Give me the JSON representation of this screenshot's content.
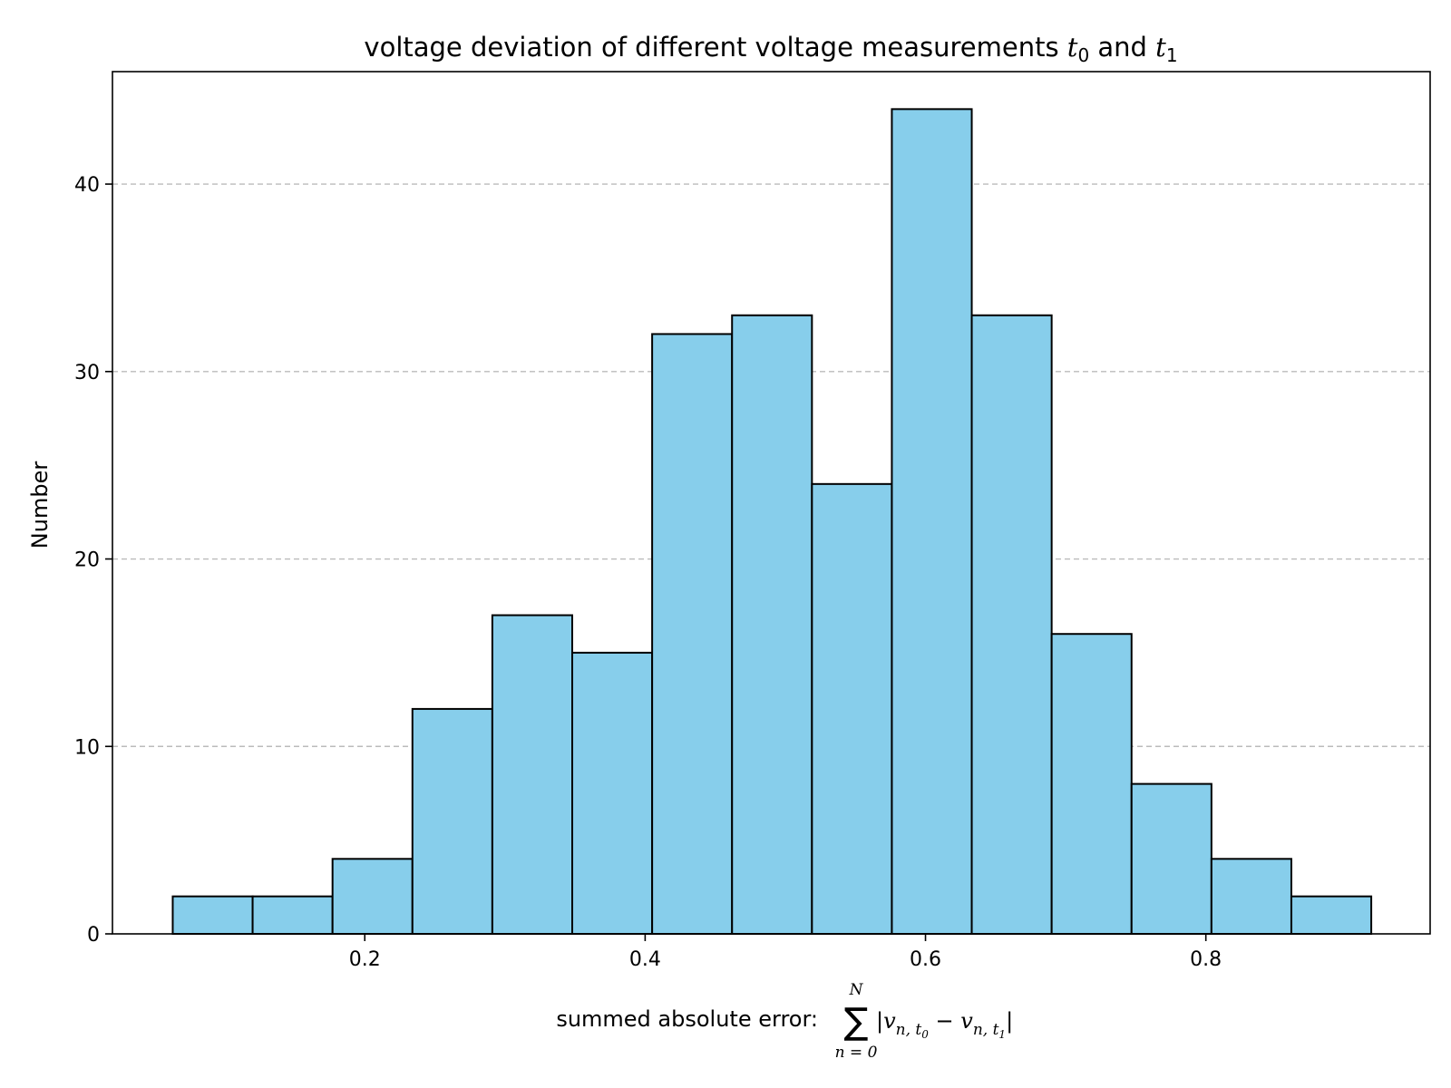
{
  "chart_data": {
    "type": "bar",
    "title": {
      "text": "voltage deviation of different voltage measurements ",
      "var0": "t",
      "sub0": "0",
      "conj": " and ",
      "var1": "t",
      "sub1": "1"
    },
    "xlabel": {
      "prefix": "summed absolute error:  ",
      "sum_symbol": "∑",
      "sum_upper": "N",
      "sum_lower": "n = 0",
      "abs_open": "|",
      "v0": "v",
      "sub0_main": "n, t",
      "sub0_sub": "0",
      "minus": " − ",
      "v1": "v",
      "sub1_main": "n, t",
      "sub1_sub": "1",
      "abs_close": "|"
    },
    "ylabel": "Number",
    "xlim": [
      0.02,
      0.96
    ],
    "ylim": [
      0,
      46
    ],
    "xticks": [
      0.2,
      0.4,
      0.6,
      0.8
    ],
    "xtick_labels": [
      "0.2",
      "0.4",
      "0.6",
      "0.8"
    ],
    "yticks": [
      0,
      10,
      20,
      30,
      40
    ],
    "ytick_labels": [
      "0",
      "10",
      "20",
      "30",
      "40"
    ],
    "bin_edges": [
      0.063,
      0.12,
      0.177,
      0.234,
      0.291,
      0.348,
      0.405,
      0.462,
      0.519,
      0.576,
      0.633,
      0.69,
      0.747,
      0.804,
      0.861,
      0.918
    ],
    "values": [
      2,
      2,
      4,
      12,
      17,
      15,
      32,
      33,
      24,
      44,
      33,
      16,
      8,
      4,
      2
    ],
    "grid": "y-dashed",
    "colors": {
      "bar_fill": "#87ceeb",
      "bar_edge": "#000000",
      "grid": "#bbbbbb"
    }
  }
}
